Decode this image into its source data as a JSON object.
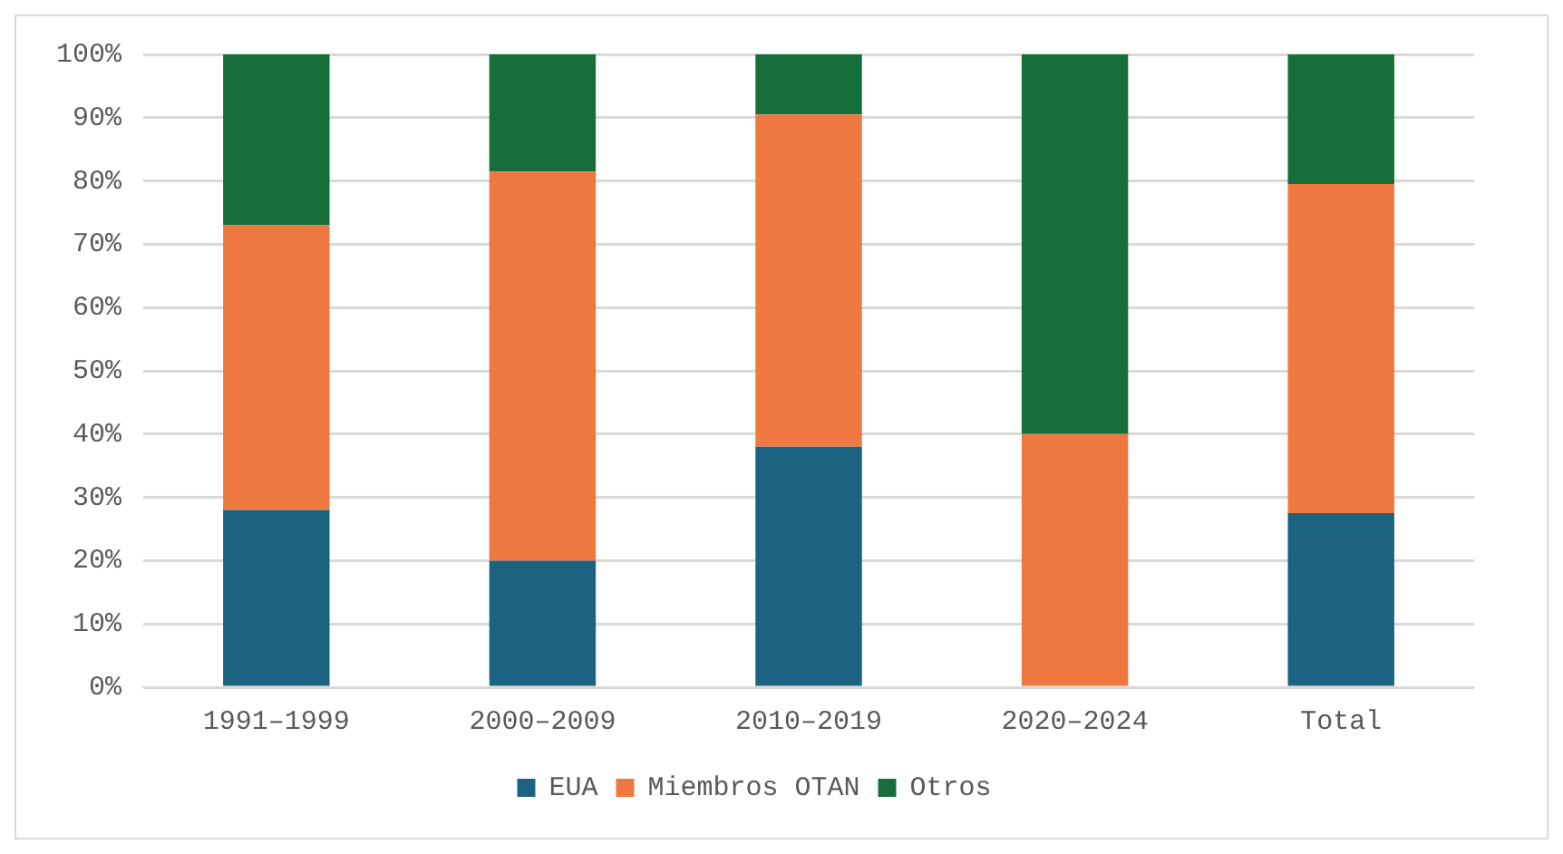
{
  "chart_data": {
    "type": "bar",
    "stacked": true,
    "categories": [
      "1991–1999",
      "2000–2009",
      "2010–2019",
      "2020–2024",
      "Total"
    ],
    "series": [
      {
        "name": "EUA",
        "color": "#1b6381",
        "values": [
          28,
          20,
          38,
          0,
          27.5
        ]
      },
      {
        "name": "Miembros OTAN",
        "color": "#ee783f",
        "values": [
          45,
          61.5,
          52.5,
          40,
          52
        ]
      },
      {
        "name": "Otros",
        "color": "#166f3a",
        "values": [
          27,
          18.5,
          9.5,
          60,
          20.5
        ]
      }
    ],
    "ylim": [
      0,
      100
    ],
    "yticks": [
      {
        "value": 0,
        "label": "0%"
      },
      {
        "value": 10,
        "label": "10%"
      },
      {
        "value": 20,
        "label": "20%"
      },
      {
        "value": 30,
        "label": "30%"
      },
      {
        "value": 40,
        "label": "40%"
      },
      {
        "value": 50,
        "label": "50%"
      },
      {
        "value": 60,
        "label": "60%"
      },
      {
        "value": 70,
        "label": "70%"
      },
      {
        "value": 80,
        "label": "80%"
      },
      {
        "value": 90,
        "label": "90%"
      },
      {
        "value": 100,
        "label": "100%"
      }
    ],
    "grid": "y",
    "legend": "bottom"
  }
}
